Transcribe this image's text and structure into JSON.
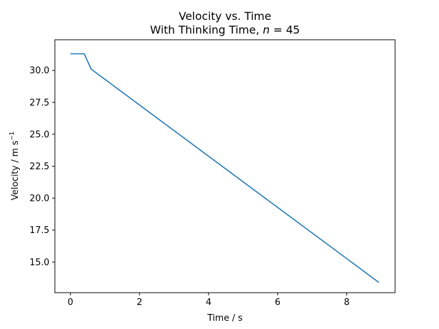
{
  "chart_data": {
    "type": "line",
    "title": "Velocity vs. Time",
    "subtitle_prefix": "With Thinking Time, ",
    "subtitle_var": "n",
    "subtitle_rel": " = 45",
    "xlabel": "Time / s",
    "ylabel_prefix": "Velocity / m s",
    "ylabel_exponent": "−1",
    "xlim": [
      -0.45,
      9.4
    ],
    "ylim": [
      12.6,
      32.4
    ],
    "xticks": [
      0,
      2,
      4,
      6,
      8
    ],
    "xtick_labels": [
      "0",
      "2",
      "4",
      "6",
      "8"
    ],
    "yticks": [
      15.0,
      17.5,
      20.0,
      22.5,
      25.0,
      27.5,
      30.0
    ],
    "ytick_labels": [
      "15.0",
      "17.5",
      "20.0",
      "22.5",
      "25.0",
      "27.5",
      "30.0"
    ],
    "grid": false,
    "series": [
      {
        "color": "#1f77b4",
        "x": [
          0,
          0.4,
          0.6,
          8.93
        ],
        "y": [
          31.3,
          31.3,
          30.1,
          13.4
        ]
      }
    ]
  }
}
